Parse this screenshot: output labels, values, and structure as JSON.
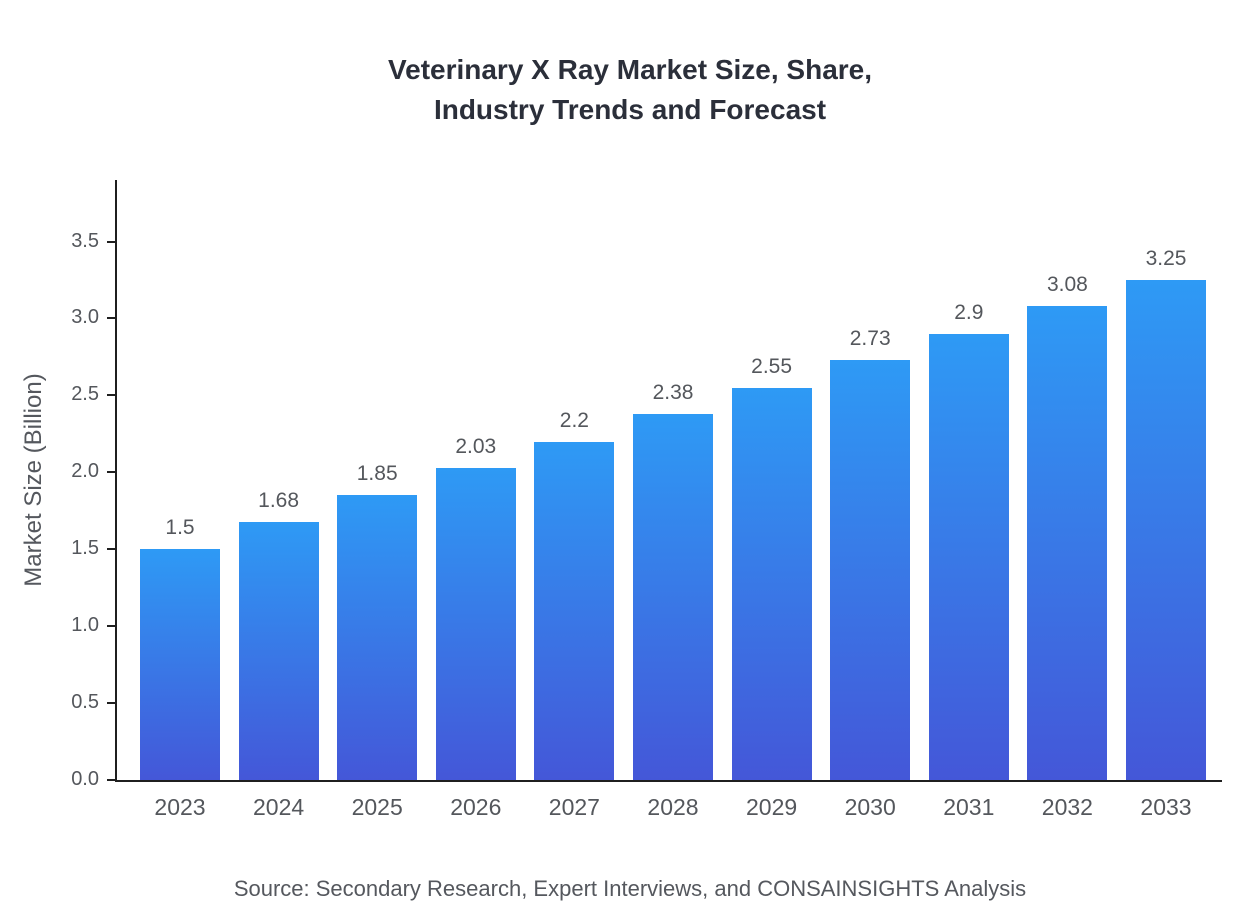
{
  "title": {
    "line1": "Veterinary X Ray Market Size, Share,",
    "line2": "Industry Trends and Forecast"
  },
  "y_axis_label": "Market Size (Billion)",
  "source": "Source: Secondary Research, Expert Interviews, and CONSAINSIGHTS Analysis",
  "colors": {
    "bar_top": "#2e9af5",
    "bar_bottom": "#4457d8",
    "axis": "#1f1f1f",
    "tick_label": "#54575c",
    "title": "#2b2f3a"
  },
  "chart_data": {
    "type": "bar",
    "title": "Veterinary X Ray Market Size, Share, Industry Trends and Forecast",
    "categories": [
      "2023",
      "2024",
      "2025",
      "2026",
      "2027",
      "2028",
      "2029",
      "2030",
      "2031",
      "2032",
      "2033"
    ],
    "values": [
      1.5,
      1.68,
      1.85,
      2.03,
      2.2,
      2.38,
      2.55,
      2.73,
      2.9,
      3.08,
      3.25
    ],
    "value_labels": [
      "1.5",
      "1.68",
      "1.85",
      "2.03",
      "2.2",
      "2.38",
      "2.55",
      "2.73",
      "2.9",
      "3.08",
      "3.25"
    ],
    "xlabel": "",
    "ylabel": "Market Size (Billion)",
    "ylim": [
      0,
      3.9
    ],
    "yticks": [
      0.0,
      0.5,
      1.0,
      1.5,
      2.0,
      2.5,
      3.0,
      3.5
    ],
    "grid": false,
    "legend": false,
    "bar_color_gradient": [
      "#2e9af5",
      "#4457d8"
    ]
  }
}
